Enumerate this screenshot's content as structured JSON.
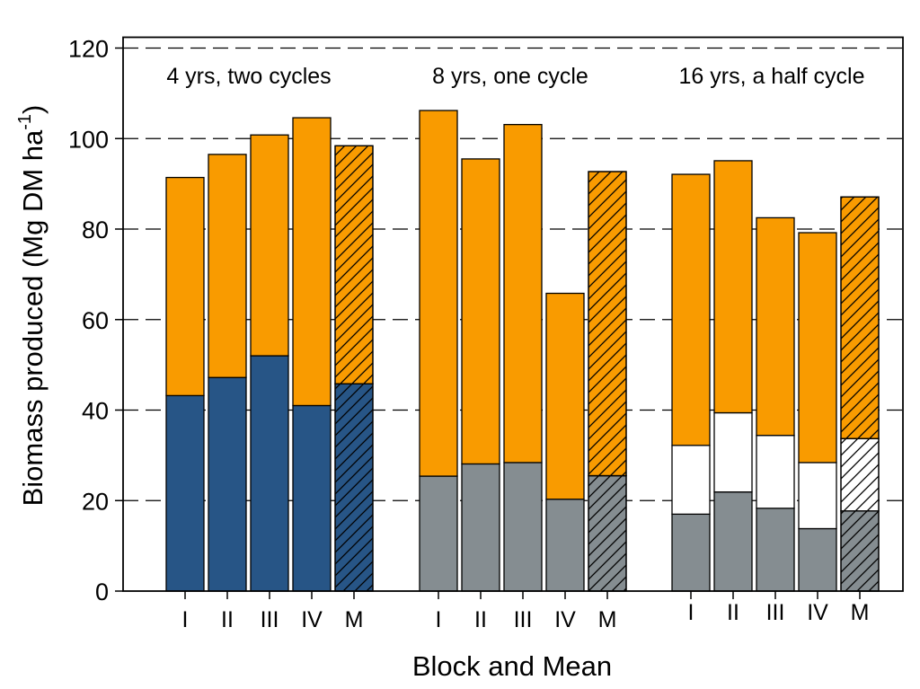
{
  "chart_data": {
    "type": "bar",
    "stacked": true,
    "ylabel_main": "Biomass produced (Mg DM ha",
    "ylabel_sup": "-1",
    "ylabel_close": ")",
    "xlabel": "Block and Mean",
    "ylim": [
      0,
      120
    ],
    "yticks": [
      0,
      20,
      40,
      60,
      80,
      100,
      120
    ],
    "grid": "dashed horizontal",
    "colors": {
      "first_cycle": "#275586",
      "harvest": "#858d91",
      "growth": "#f99b00",
      "intermediate": "#ffffff",
      "hatch": "#000000"
    },
    "groups": [
      {
        "label": "4 yrs, two cycles",
        "bars": [
          {
            "category": "I",
            "segments": [
              {
                "value": 43.2,
                "color": "first_cycle"
              },
              {
                "value": 48.2,
                "color": "growth"
              }
            ]
          },
          {
            "category": "II",
            "segments": [
              {
                "value": 47.2,
                "color": "first_cycle"
              },
              {
                "value": 49.3,
                "color": "growth"
              }
            ]
          },
          {
            "category": "III",
            "segments": [
              {
                "value": 52.0,
                "color": "first_cycle"
              },
              {
                "value": 48.8,
                "color": "growth"
              }
            ]
          },
          {
            "category": "IV",
            "segments": [
              {
                "value": 41.0,
                "color": "first_cycle"
              },
              {
                "value": 63.6,
                "color": "growth"
              }
            ]
          },
          {
            "category": "M",
            "hatched": true,
            "segments": [
              {
                "value": 45.8,
                "color": "first_cycle"
              },
              {
                "value": 52.6,
                "color": "growth"
              }
            ]
          }
        ]
      },
      {
        "label": "8 yrs, one cycle",
        "bars": [
          {
            "category": "I",
            "segments": [
              {
                "value": 25.4,
                "color": "harvest"
              },
              {
                "value": 80.8,
                "color": "growth"
              }
            ]
          },
          {
            "category": "II",
            "segments": [
              {
                "value": 28.1,
                "color": "harvest"
              },
              {
                "value": 67.4,
                "color": "growth"
              }
            ]
          },
          {
            "category": "III",
            "segments": [
              {
                "value": 28.4,
                "color": "harvest"
              },
              {
                "value": 74.7,
                "color": "growth"
              }
            ]
          },
          {
            "category": "IV",
            "segments": [
              {
                "value": 20.3,
                "color": "harvest"
              },
              {
                "value": 45.5,
                "color": "growth"
              }
            ]
          },
          {
            "category": "M",
            "hatched": true,
            "segments": [
              {
                "value": 25.5,
                "color": "harvest"
              },
              {
                "value": 67.2,
                "color": "growth"
              }
            ]
          }
        ]
      },
      {
        "label": "16 yrs, a half cycle",
        "bars": [
          {
            "category": "I",
            "segments": [
              {
                "value": 17.0,
                "color": "harvest"
              },
              {
                "value": 15.2,
                "color": "intermediate"
              },
              {
                "value": 59.9,
                "color": "growth"
              }
            ]
          },
          {
            "category": "II",
            "segments": [
              {
                "value": 21.9,
                "color": "harvest"
              },
              {
                "value": 17.5,
                "color": "intermediate"
              },
              {
                "value": 55.7,
                "color": "growth"
              }
            ]
          },
          {
            "category": "III",
            "segments": [
              {
                "value": 18.3,
                "color": "harvest"
              },
              {
                "value": 16.1,
                "color": "intermediate"
              },
              {
                "value": 48.1,
                "color": "growth"
              }
            ]
          },
          {
            "category": "IV",
            "segments": [
              {
                "value": 13.8,
                "color": "harvest"
              },
              {
                "value": 14.6,
                "color": "intermediate"
              },
              {
                "value": 50.8,
                "color": "growth"
              }
            ]
          },
          {
            "category": "M",
            "hatched": true,
            "segments": [
              {
                "value": 17.7,
                "color": "harvest"
              },
              {
                "value": 16.0,
                "color": "intermediate"
              },
              {
                "value": 53.4,
                "color": "growth"
              }
            ]
          }
        ]
      }
    ]
  }
}
